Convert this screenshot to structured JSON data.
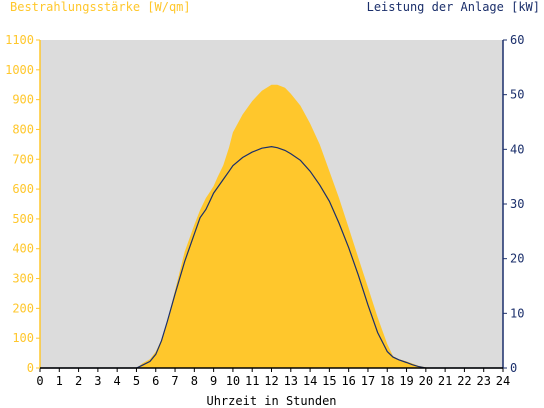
{
  "chart_data": {
    "type": "area",
    "title": "",
    "xlabel": "Uhrzeit in Stunden",
    "ylabel_left": "Bestrahlungsstärke [W/qm]",
    "ylabel_right": "Leistung der Anlage [kW]",
    "xlim": [
      0,
      24
    ],
    "ylim_left": [
      0,
      1100
    ],
    "ylim_right": [
      0,
      60
    ],
    "x_ticks": [
      "0",
      "1",
      "2",
      "3",
      "4",
      "5",
      "6",
      "7",
      "8",
      "9",
      "10",
      "11",
      "12",
      "13",
      "14",
      "15",
      "16",
      "17",
      "18",
      "19",
      "20",
      "21",
      "22",
      "23",
      "24"
    ],
    "y_ticks_left": [
      "0",
      "100",
      "200",
      "300",
      "400",
      "500",
      "600",
      "700",
      "800",
      "900",
      "1000",
      "1100"
    ],
    "y_ticks_right": [
      "0",
      "10",
      "20",
      "30",
      "40",
      "50",
      "60"
    ],
    "grid": false,
    "colors": {
      "plot_background": "#dcdcdc",
      "irradiance": "#ffc72c",
      "power": "#1b2f6b",
      "left_axis": "#ffc72c",
      "right_axis": "#1b2f6b"
    },
    "series": [
      {
        "name": "Bestrahlungsstärke [W/qm]",
        "axis": "left",
        "kind": "area",
        "x": [
          0,
          5.0,
          5.3,
          5.7,
          6.0,
          6.3,
          6.6,
          7.0,
          7.5,
          8.0,
          8.3,
          8.6,
          8.8,
          9.0,
          9.2,
          9.5,
          9.8,
          10.0,
          10.5,
          11.0,
          11.5,
          12.0,
          12.3,
          12.7,
          13.0,
          13.5,
          14.0,
          14.5,
          15.0,
          15.5,
          16.0,
          16.5,
          17.0,
          17.5,
          18.0,
          18.3,
          18.6,
          19.0,
          19.3,
          19.6,
          20.0,
          20.2,
          24
        ],
        "values": [
          0,
          0,
          15,
          30,
          55,
          95,
          155,
          260,
          390,
          480,
          530,
          570,
          590,
          610,
          640,
          680,
          740,
          790,
          850,
          895,
          930,
          950,
          950,
          940,
          920,
          880,
          820,
          750,
          660,
          570,
          470,
          370,
          270,
          170,
          80,
          40,
          30,
          22,
          15,
          8,
          2,
          0,
          0
        ]
      },
      {
        "name": "Leistung der Anlage [kW]",
        "axis": "right",
        "kind": "line",
        "x": [
          0,
          5.0,
          5.3,
          5.7,
          6.0,
          6.3,
          6.6,
          7.0,
          7.5,
          8.0,
          8.3,
          8.6,
          8.8,
          9.0,
          9.2,
          9.5,
          9.8,
          10.0,
          10.5,
          11.0,
          11.5,
          12.0,
          12.3,
          12.7,
          13.0,
          13.5,
          14.0,
          14.5,
          15.0,
          15.5,
          16.0,
          16.5,
          17.0,
          17.5,
          18.0,
          18.3,
          18.6,
          19.0,
          19.3,
          19.6,
          20.0,
          20.2,
          24
        ],
        "values": [
          0,
          0,
          0.5,
          1.2,
          2.5,
          5.0,
          8.5,
          13.5,
          19.5,
          24.5,
          27.5,
          29.0,
          30.5,
          32.0,
          33.0,
          34.5,
          36.0,
          37.0,
          38.5,
          39.5,
          40.2,
          40.5,
          40.3,
          39.8,
          39.2,
          38.0,
          36.0,
          33.5,
          30.5,
          26.5,
          22.0,
          17.0,
          11.5,
          6.5,
          3.0,
          2.0,
          1.5,
          1.0,
          0.6,
          0.3,
          0,
          0,
          0
        ]
      }
    ]
  }
}
